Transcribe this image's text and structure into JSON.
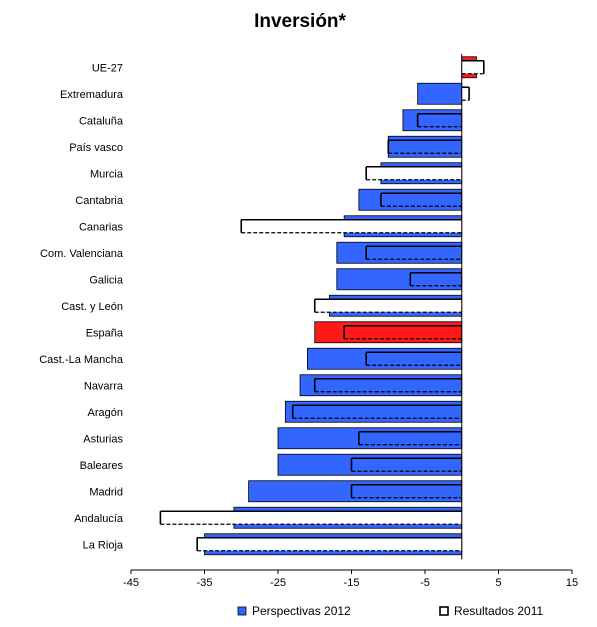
{
  "chart_data": {
    "type": "bar",
    "orientation": "horizontal",
    "title": "Inversión*",
    "categories": [
      "UE-27",
      "Extremadura",
      "Cataluña",
      "País vasco",
      "Murcia",
      "Cantabria",
      "Canarias",
      "Com. Valenciana",
      "Galicia",
      "Cast. y León",
      "España",
      "Cast.-La Mancha",
      "Navarra",
      "Aragón",
      "Asturias",
      "Baleares",
      "Madrid",
      "Andalucía",
      "La Rioja"
    ],
    "series": [
      {
        "name": "Perspectivas 2012",
        "color": "#3366ff",
        "highlight_color": "#ff1a1a",
        "style": "filled",
        "values": [
          2,
          -6,
          -8,
          -10,
          -11,
          -14,
          -16,
          -17,
          -17,
          -18,
          -20,
          -21,
          -22,
          -24,
          -25,
          -25,
          -29,
          -31,
          -35
        ]
      },
      {
        "name": "Resultados 2011",
        "color": "#ffffff",
        "style": "outline-dashed",
        "values": [
          3,
          1,
          -6,
          -10,
          -13,
          -11,
          -30,
          -13,
          -7,
          -20,
          -16,
          -13,
          -20,
          -23,
          -14,
          -15,
          -15,
          -41,
          -36
        ]
      }
    ],
    "highlighted_categories": [
      "UE-27",
      "España"
    ],
    "xlim": [
      -45,
      15
    ],
    "xticks": [
      -45,
      -35,
      -25,
      -15,
      -5,
      5,
      15
    ],
    "legend_position": "bottom",
    "grid": false
  }
}
